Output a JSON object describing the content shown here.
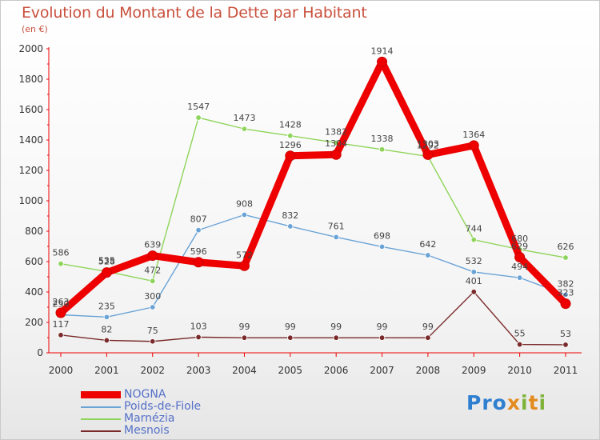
{
  "title": "Evolution du Montant de la Dette par Habitant",
  "subtitle": "(en €)",
  "logo": {
    "text": "Proxiti",
    "colors": [
      "#2f7fd1",
      "#e38b1f",
      "#7fb23a"
    ]
  },
  "chart_data": {
    "type": "line",
    "categories": [
      "2000",
      "2001",
      "2002",
      "2003",
      "2004",
      "2005",
      "2006",
      "2007",
      "2008",
      "2009",
      "2010",
      "2011"
    ],
    "ylim": [
      0,
      2000
    ],
    "yticks": [
      0,
      200,
      400,
      600,
      800,
      1000,
      1200,
      1400,
      1600,
      1800,
      2000
    ],
    "grid": false,
    "legend_position": "bottom-left",
    "series": [
      {
        "name": "NOGNA",
        "color": "#ee0000",
        "bold": true,
        "values": [
          263,
          528,
          639,
          596,
          572,
          1296,
          1304,
          1914,
          1303,
          1364,
          629,
          323
        ]
      },
      {
        "name": "Poids-de-Fiole",
        "color": "#6aa3d6",
        "bold": false,
        "values": [
          250,
          235,
          300,
          807,
          908,
          832,
          761,
          698,
          642,
          532,
          494,
          382
        ]
      },
      {
        "name": "Marnézia",
        "color": "#8fd45a",
        "bold": false,
        "values": [
          586,
          535,
          472,
          1547,
          1473,
          1428,
          1382,
          1338,
          1292,
          744,
          680,
          626
        ]
      },
      {
        "name": "Mesnois",
        "color": "#7a2a2a",
        "bold": false,
        "values": [
          117,
          82,
          75,
          103,
          99,
          99,
          99,
          99,
          99,
          401,
          55,
          53
        ]
      }
    ]
  }
}
